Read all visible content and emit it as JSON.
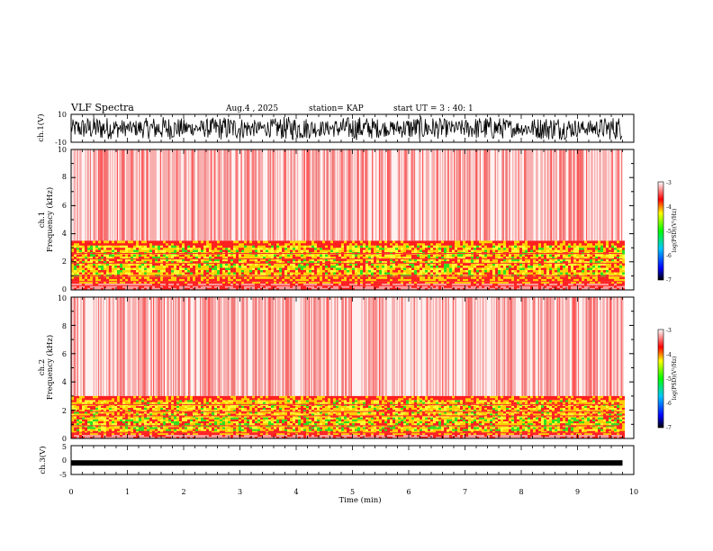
{
  "header": {
    "title": "VLF Spectra",
    "date": "Aug.4 , 2025",
    "station": "station= KAP",
    "start": "start UT = 3 : 40: 1"
  },
  "chart_data": [
    {
      "panel": "ch1-waveform",
      "type": "line",
      "ylabel": "ch.1(V)",
      "ylim": [
        -10,
        10
      ],
      "yticks": [
        "10",
        "-10"
      ],
      "xlim": [
        0,
        10
      ],
      "data_end_min": 9.8
    },
    {
      "panel": "ch1-spectrogram",
      "type": "heatmap",
      "ylabel_line1": "ch.1",
      "ylabel_line2": "Frequency (kHz)",
      "ylim": [
        0,
        10
      ],
      "yticks": [
        "0",
        "2",
        "4",
        "6",
        "8",
        "10"
      ],
      "xlim": [
        0,
        10
      ],
      "data_end_min": 9.8,
      "strong_band_khz": [
        0.8,
        3.5
      ],
      "colorbar": {
        "label": "log(PSD)(V²/Hz)",
        "range": [
          -7,
          -3
        ],
        "ticks": [
          "-3",
          "-4",
          "-5",
          "-6",
          "-7"
        ]
      }
    },
    {
      "panel": "ch2-spectrogram",
      "type": "heatmap",
      "ylabel_line1": "ch.2",
      "ylabel_line2": "Frequency (kHz)",
      "ylim": [
        0,
        10
      ],
      "yticks": [
        "0",
        "2",
        "4",
        "6",
        "8",
        "10"
      ],
      "xlim": [
        0,
        10
      ],
      "data_end_min": 9.8,
      "strong_band_khz": [
        0.5,
        3.0
      ],
      "colorbar": {
        "label": "log(PSD)(V²/Hz)",
        "range": [
          -7,
          -3
        ],
        "ticks": [
          "-3",
          "-4",
          "-5",
          "-6",
          "-7"
        ]
      }
    },
    {
      "panel": "ch3-waveform",
      "type": "line",
      "ylabel": "ch.3(V)",
      "ylim": [
        -5,
        5
      ],
      "yticks": [
        "5",
        "0",
        "-5"
      ],
      "xlim": [
        0,
        10
      ],
      "data_end_min": 9.8,
      "level_v": -1.0
    },
    {
      "panel": "time-axis",
      "xlabel": "Time (min)",
      "xticks": [
        "0",
        "1",
        "2",
        "3",
        "4",
        "5",
        "6",
        "7",
        "8",
        "9",
        "10"
      ]
    }
  ]
}
